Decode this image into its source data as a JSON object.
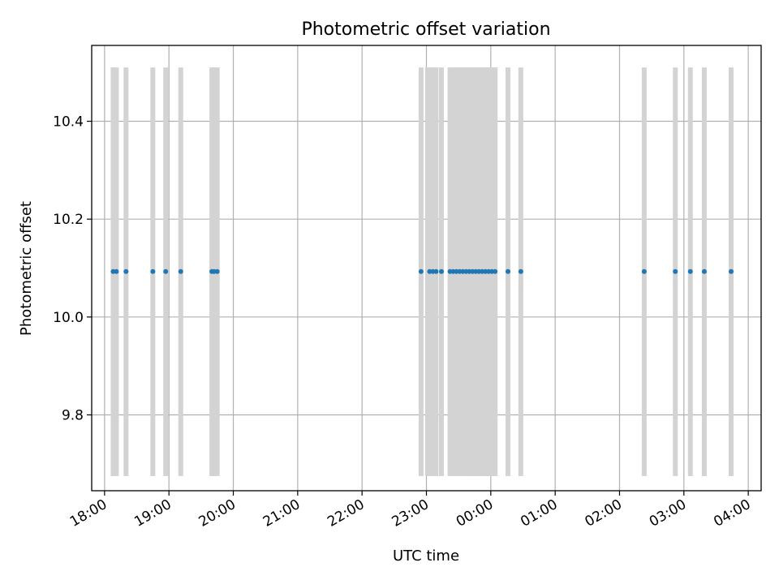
{
  "chart_data": {
    "type": "scatter",
    "title": "Photometric offset variation",
    "xlabel": "UTC time",
    "ylabel": "Photometric offset",
    "xlim": [
      "17:48",
      "04:12"
    ],
    "ylim": [
      9.645,
      10.555
    ],
    "xticks": [
      "18:00",
      "19:00",
      "20:00",
      "21:00",
      "22:00",
      "23:00",
      "00:00",
      "01:00",
      "02:00",
      "03:00",
      "04:00"
    ],
    "yticks": [
      9.8,
      10.0,
      10.2,
      10.4
    ],
    "grid": true,
    "exposure_band": {
      "ymin": 9.675,
      "ymax": 10.51
    },
    "exposure_lines": [
      "18:08",
      "18:11",
      "18:20",
      "18:45",
      "18:57",
      "19:11",
      "19:40",
      "19:42",
      "19:45",
      "22:55",
      "23:01",
      "23:03",
      "23:06",
      "23:09",
      "23:14",
      "23:22",
      "23:25",
      "23:28",
      "23:31",
      "23:34",
      "23:37",
      "23:40",
      "23:43",
      "23:46",
      "23:49",
      "23:52",
      "23:55",
      "23:58",
      "00:01",
      "00:04",
      "00:16",
      "00:28",
      "02:23",
      "02:52",
      "03:06",
      "03:19",
      "03:44"
    ],
    "exposure_span": [
      "23:38",
      "00:04"
    ],
    "series": [
      {
        "x": [
          "18:08",
          "18:11",
          "18:20",
          "18:45",
          "18:57",
          "19:11",
          "19:40",
          "19:42",
          "19:45",
          "22:55",
          "23:03",
          "23:06",
          "23:09",
          "23:14",
          "23:22",
          "23:25",
          "23:28",
          "23:31",
          "23:34",
          "23:37",
          "23:40",
          "23:43",
          "23:46",
          "23:49",
          "23:52",
          "23:55",
          "23:58",
          "00:01",
          "00:04",
          "00:16",
          "00:28",
          "02:23",
          "02:52",
          "03:06",
          "03:19",
          "03:44"
        ],
        "y": [
          10.093,
          10.093,
          10.093,
          10.093,
          10.093,
          10.093,
          10.093,
          10.093,
          10.093,
          10.093,
          10.093,
          10.093,
          10.093,
          10.093,
          10.093,
          10.093,
          10.093,
          10.093,
          10.093,
          10.093,
          10.093,
          10.093,
          10.093,
          10.093,
          10.093,
          10.093,
          10.093,
          10.093,
          10.093,
          10.093,
          10.093,
          10.093,
          10.093,
          10.093,
          10.093,
          10.093
        ]
      }
    ],
    "colors": {
      "points": "#1f77b4",
      "exposures": "#d3d3d3",
      "grid": "#b0b0b0"
    }
  }
}
